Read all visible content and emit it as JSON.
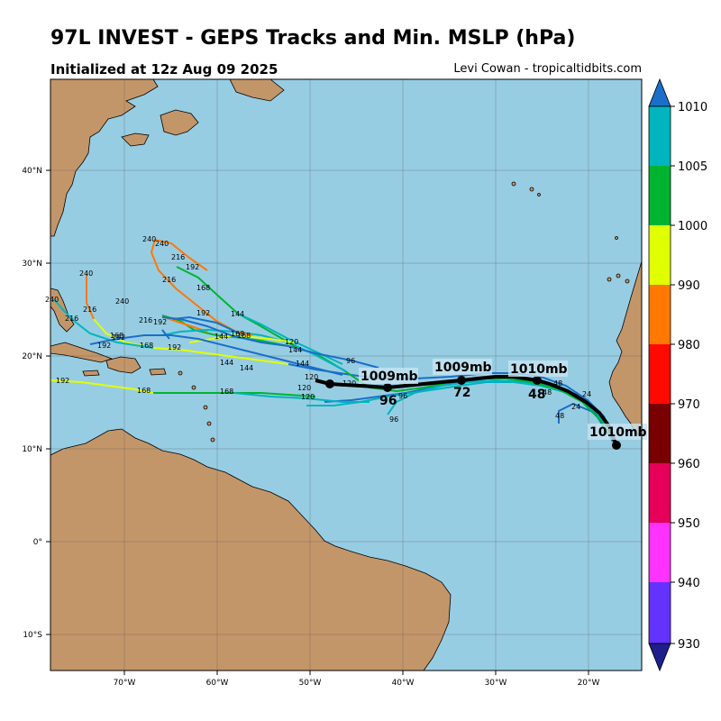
{
  "header": {
    "title": "97L INVEST - GEPS Tracks and Min. MSLP (hPa)",
    "subtitle": "Initialized at 12z Aug 09 2025",
    "credit": "Levi Cowan - tropicaltidbits.com"
  },
  "map": {
    "ocean_color": "#97cde3",
    "land_color": "#c3966a",
    "lat_labels": [
      "40°N",
      "30°N",
      "20°N",
      "10°N",
      "0°",
      "10°S"
    ],
    "lon_labels": [
      "70°W",
      "60°W",
      "50°W",
      "40°W",
      "30°W",
      "20°W"
    ]
  },
  "mean_track": {
    "color": "#000000",
    "labels": [
      {
        "pressure": "1010mb",
        "hour": ""
      },
      {
        "pressure": "1010mb",
        "hour": "48"
      },
      {
        "pressure": "1009mb",
        "hour": "72"
      },
      {
        "pressure": "1009mb",
        "hour": "96"
      }
    ]
  },
  "member_hour_labels": [
    "240",
    "240",
    "216",
    "192",
    "168",
    "216",
    "192",
    "144",
    "168",
    "168",
    "120",
    "144",
    "96",
    "240",
    "216",
    "192",
    "168",
    "192",
    "144",
    "120",
    "120",
    "120",
    "96",
    "96",
    "48",
    "48",
    "48",
    "24",
    "24",
    "240",
    "216",
    "192",
    "168",
    "144",
    "120",
    "192",
    "168",
    "144",
    "240",
    "216",
    "192",
    "168",
    "144"
  ],
  "colorbar": {
    "ticks": [
      "1010",
      "1005",
      "1000",
      "990",
      "980",
      "970",
      "960",
      "950",
      "940",
      "930"
    ],
    "colors": [
      "#1a6fc9",
      "#00b5bd",
      "#00b432",
      "#e0ff00",
      "#ff7800",
      "#ff0a00",
      "#780000",
      "#e6005a",
      "#ff32ff",
      "#6432ff",
      "#1e1e8c"
    ]
  }
}
